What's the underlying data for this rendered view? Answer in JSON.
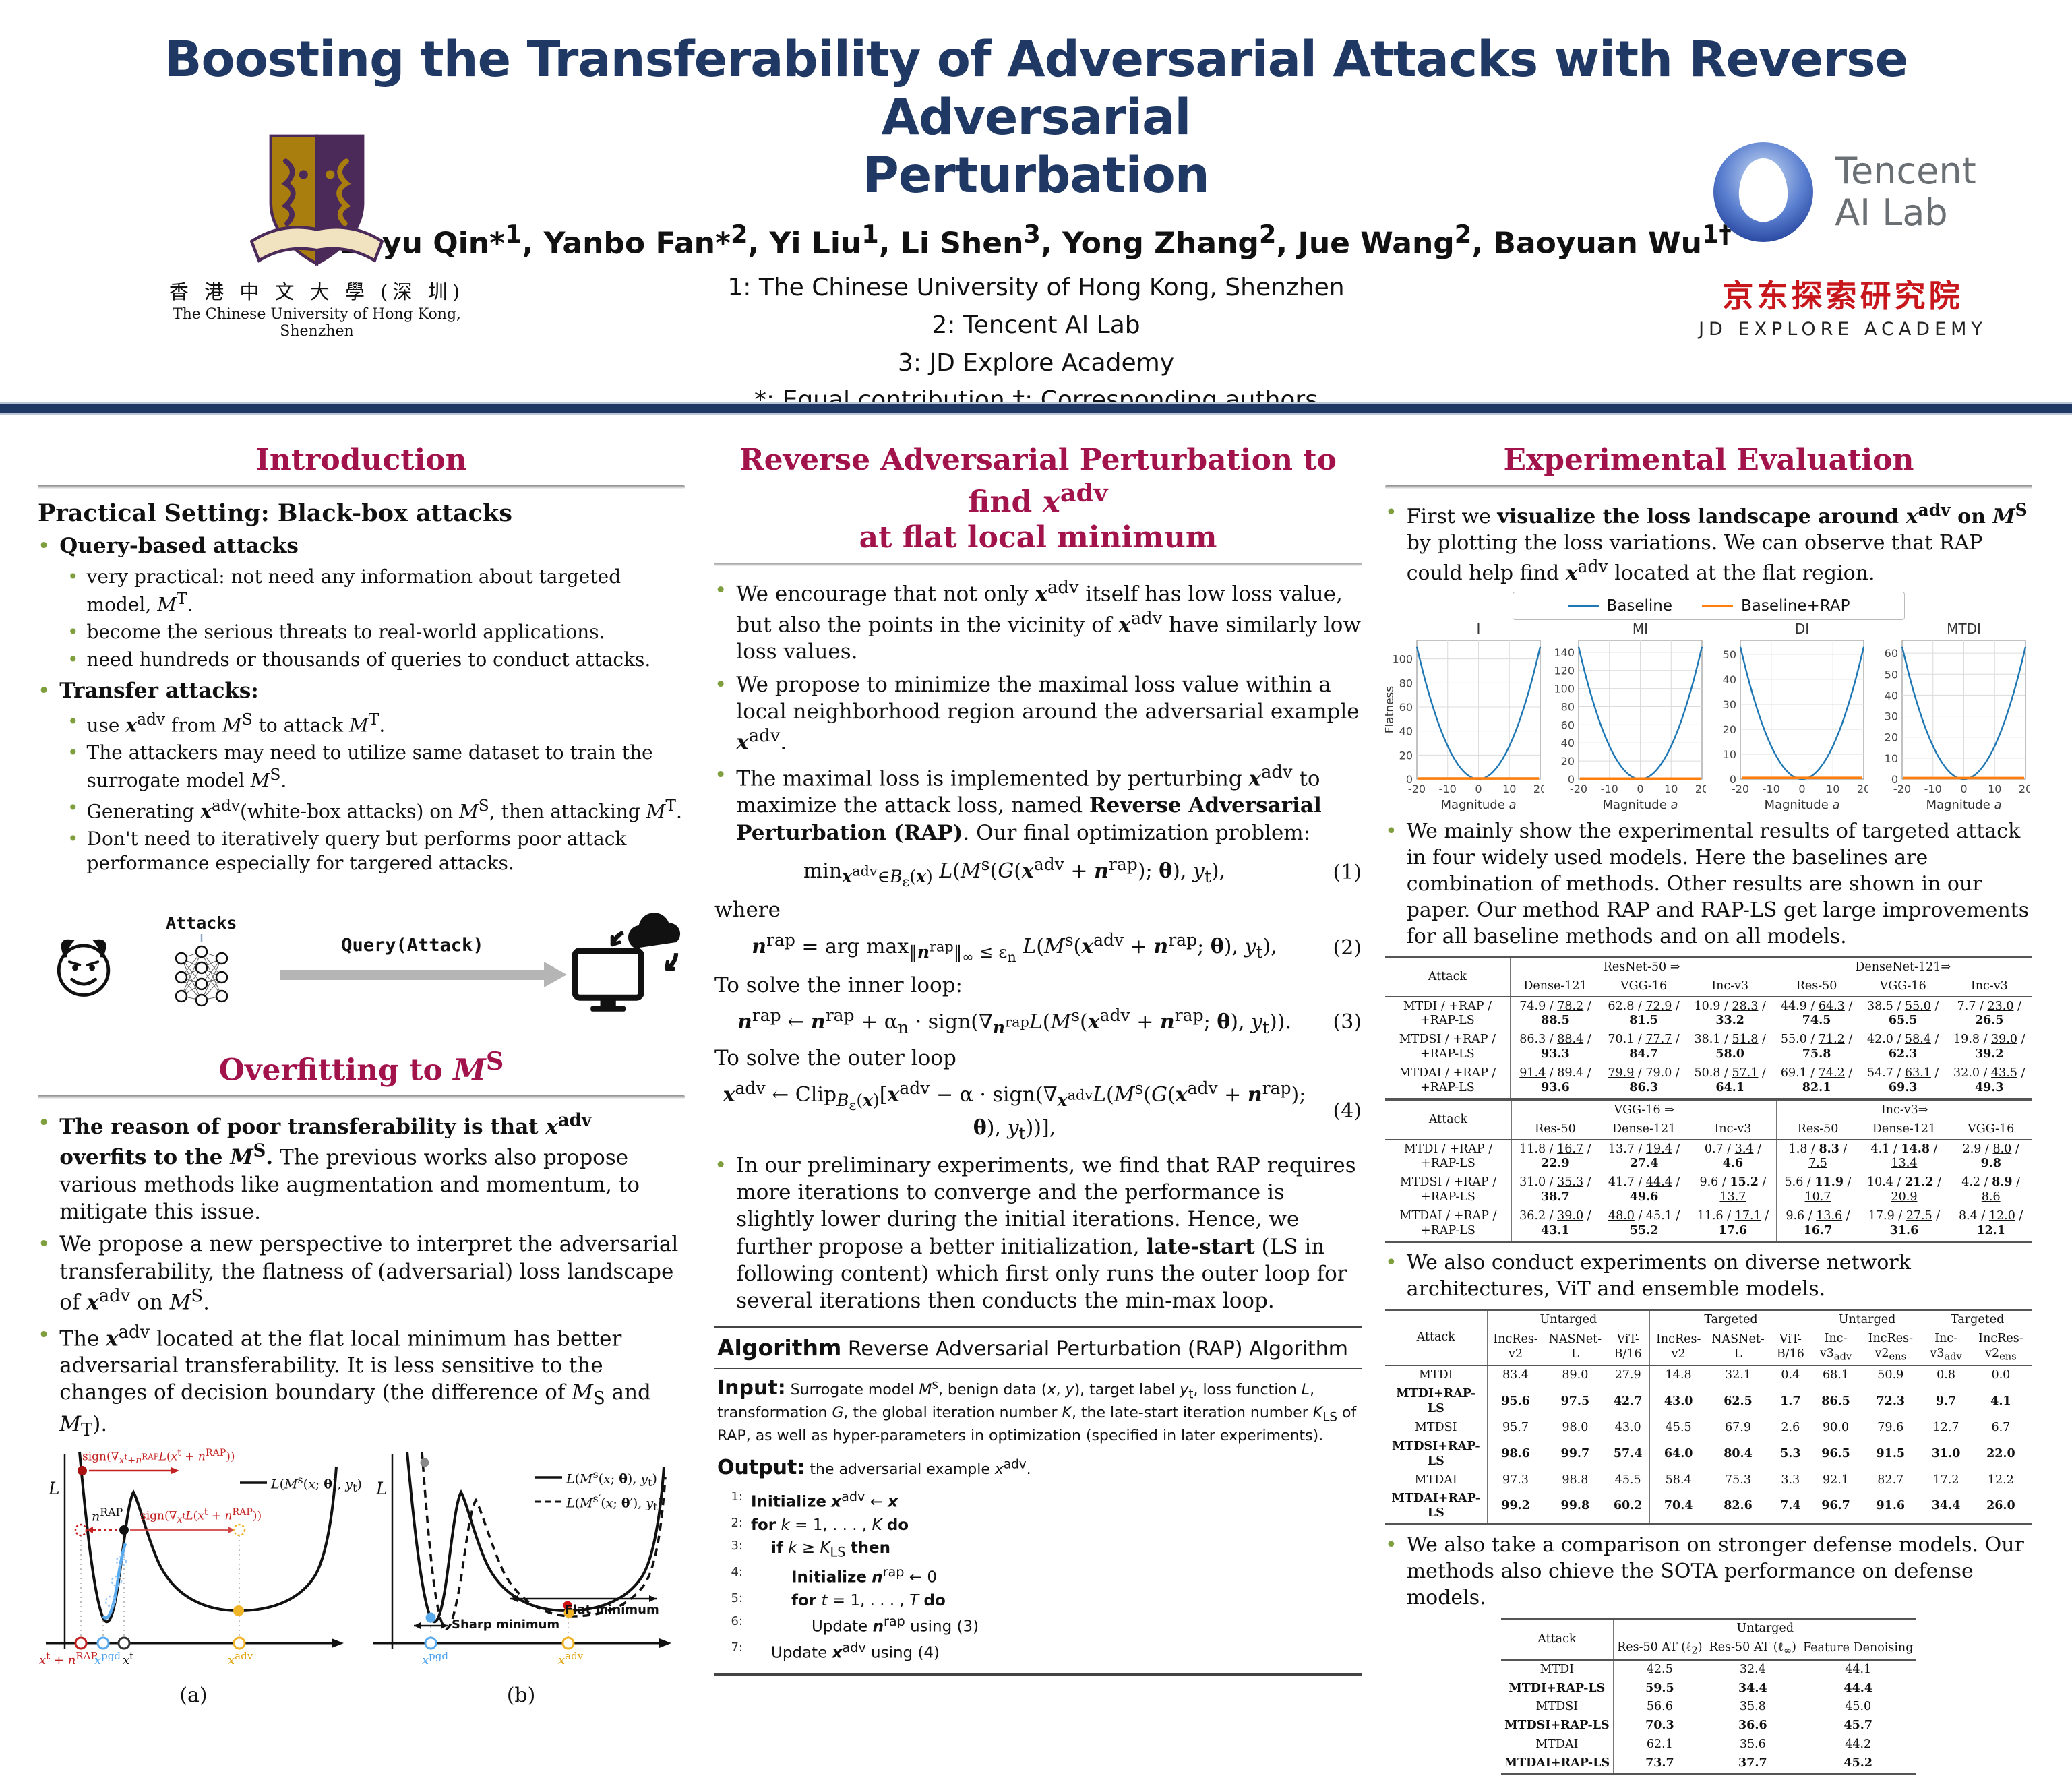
{
  "colors": {
    "accent": "#A3134B",
    "navy": "#1F3864",
    "bullet_green": "#7f9f3f",
    "baseline_blue": "#1f77b4",
    "rap_orange": "#ff7f0e",
    "jd_red": "#c8161d",
    "cuhk_purple": "#4b2a59",
    "cuhk_gold": "#a97d0e"
  },
  "header": {
    "title": "Boosting the Transferability of Adversarial Attacks with Reverse Adversarial\nPerturbation",
    "authors": "Zeyu Qin*^{1}, Yanbo Fan*^{2}, Yi Liu^{1}, Li Shen^{3}, Yong Zhang^{2}, Jue Wang^{2}, Baoyuan Wu^{1†}",
    "affils": [
      "1: The Chinese University of Hong Kong, Shenzhen",
      "2: Tencent AI Lab",
      "3: JD Explore Academy",
      "*: Equal contribution †: Corresponding authors"
    ],
    "cuhk": {
      "cn": "香 港 中 文 大 學 (深 圳)",
      "en": "The Chinese University of Hong Kong, Shenzhen"
    },
    "tencent": {
      "line1": "Tencent",
      "line2": "AI Lab"
    },
    "jd": {
      "cn": "京东探索研究院",
      "en": "JD EXPLORE ACADEMY"
    }
  },
  "sections": {
    "intro": "Introduction",
    "overfit": "Overfitting to //M//^{S}",
    "rap1": "Reverse Adversarial Perturbation to find //x//^{adv}",
    "rap2": "at flat local minimum",
    "eval": "Experimental Evaluation"
  },
  "intro": {
    "heading": "Practical Setting: Black-box attacks",
    "b1": "Query-based attacks",
    "b1_items": [
      "very practical: not need any information about targeted model, //M//^{T}.",
      "become the serious threats to real-world applications.",
      "need hundreds or thousands of queries to conduct attacks."
    ],
    "b2": "Transfer attacks:",
    "b2_items": [
      "use **//x//**^{adv} from //M//^{S} to attack //M//^{T}.",
      "The attackers may need to utilize same dataset to train the surrogate model //M//^{S}.",
      "Generating **//x//**^{adv}(white-box attacks) on //M//^{S}, then attacking //M//^{T}.",
      "Don't need to iteratively query but performs poor attack performance especially for targered attacks."
    ]
  },
  "diagram": {
    "attacks": "Attacks",
    "query": "Query(Attack)"
  },
  "overfit_items": [
    "**The reason of poor transferability is that //x//^{adv} overfits to the //M//^{S}.** The previous works also propose various methods like augmentation and momentum, to mitigate this issue.",
    "We propose a new perspective to interpret the adversarial transferability, the flatness of (adversarial) loss landscape of **//x//**^{adv} on //M//^{S}.",
    "The **//x//**^{adv} located at the flat local minimum has better adversarial transferability. It is less sensitive to the changes of decision boundary (the difference of //M//_{S} and //M//_{T})."
  ],
  "figa": {
    "axis": "//L//",
    "sign_top": "sign(∇_{//x//^{t}+//n//^{RAP}}//L//(//x//^{t} + //n//^{RAP}))",
    "nrap": "//n//^{RAP}",
    "sign_mid": "sign(∇_{//x//^{t}}//L//(//x//^{t} + //n//^{RAP}))",
    "legend": "//L//(//M//^{s}(//x//; **θ**), //y//_{t})",
    "x1": "//x//^{t} + //n//^{RAP}",
    "x2": "//x//^{pgd}",
    "x3": "//x//^{t}",
    "x4": "//x//^{adv}",
    "cap": "(a)"
  },
  "figb": {
    "axis": "//L//",
    "legend1": "//L//(//M//^{s}(//x//; **θ**), //y//_{t})",
    "legend2": "//L//(//M//^{s′}(//x//; **θ**′), //y//_{t})",
    "sharp": "Sharp minimum",
    "flat": "Flat minimum",
    "x1": "//x//^{pgd}",
    "x2": "//x//^{adv}",
    "cap": "(b)"
  },
  "rap": {
    "bullets": [
      "We encourage that not only **//x//**^{adv} itself has low loss value, but also the points in the vicinity of **//x//**^{adv} have similarly low loss values.",
      "We propose to minimize the maximal loss value within a local neighborhood region around the adversarial example **//x//**^{adv}.",
      "The maximal loss is implemented by perturbing **//x//**^{adv} to maximize the attack loss, named **Reverse Adversarial Perturbation (RAP)**. Our final optimization problem:"
    ],
    "eq1": "min_{**//x//**^{adv}∈//B//_{ε}(**//x//**)} //L//(//M//^{s}(//G//(**//x//**^{adv} + **//n//**^{rap}); **θ**), //y//_{t}),",
    "eq1n": "(1)",
    "where": "where",
    "eq2": "**//n//**^{rap} = arg max_{‖**//n//**^{rap}‖_{∞} ≤ ε_{n}} //L//(//M//^{s}(**//x//**^{adv} + **//n//**^{rap}; **θ**), //y//_{t}),",
    "eq2n": "(2)",
    "inner": "To solve the inner loop:",
    "eq3": "**//n//**^{rap} ← **//n//**^{rap} + α_{n} · sign(∇_{**//n//**^{rap}}//L//(//M//^{s}(**//x//**^{adv} + **//n//**^{rap}; **θ**), //y//_{t})).",
    "eq3n": "(3)",
    "outer": "To solve the outer loop",
    "eq4": "**//x//**^{adv} ← Clip_{//B//_{ε}(**//x//**)}[**//x//**^{adv} − α · sign(∇_{**//x//**^{adv}}//L//(//M//^{s}(//G//(**//x//**^{adv} + **//n//**^{rap}); **θ**), //y//_{t}))],",
    "eq4n": "(4)",
    "late": "In our preliminary experiments, we find that RAP requires more iterations to converge and the performance is slightly lower during the initial iterations. Hence, we further propose a better initialization, **late-start** (LS in following content) which first only runs the outer loop for several iterations then conducts the min-max loop."
  },
  "algorithm": {
    "title_b": "Algorithm",
    "title_rest": " Reverse Adversarial Perturbation (RAP) Algorithm",
    "input_label": "Input:",
    "input_text": " Surrogate model //M//^{s}, benign data (//x//, //y//), target label //y//_{t}, loss function //L//, transformation //G//, the global iteration number //K//, the late-start iteration number //K//_{LS} of RAP, as well as hyper-parameters in optimization (specified in later experiments).",
    "output_label": "Output:",
    "output_text": " the adversarial example //x//^{adv}.",
    "lines": [
      {
        "n": "1:",
        "ind": 0,
        "t": "**Initialize** **//x//**^{adv} ← **//x//**"
      },
      {
        "n": "2:",
        "ind": 0,
        "t": "**for** //k// = 1, . . . , //K// **do**"
      },
      {
        "n": "3:",
        "ind": 1,
        "t": "**if** //k// ≥ //K//_{LS} **then**"
      },
      {
        "n": "4:",
        "ind": 2,
        "t": "**Initialize** **//n//**^{rap} ← 0"
      },
      {
        "n": "5:",
        "ind": 2,
        "t": "**for** //t// = 1, . . . , //T// **do**"
      },
      {
        "n": "6:",
        "ind": 3,
        "t": "Update **//n//**^{rap} using (3)"
      },
      {
        "n": "7:",
        "ind": 1,
        "t": "Update **//x//**^{adv} using (4)"
      }
    ]
  },
  "eval": {
    "b1": "First we **visualize the loss landscape around //x//^{adv} on //M//^{S}** by plotting the loss variations. We can observe that RAP could help find **//x//**^{adv} located at the flat region.",
    "b2": "We mainly show the experimental results of targeted attack in four widely used models. Here the baselines are combination of methods. Other results are shown in our paper. Our method RAP and RAP-LS get large improvements for all baseline methods and on all models.",
    "b3": "We also conduct experiments on diverse network architectures, ViT and ensemble models.",
    "b4": "We also take a comparison on stronger defense models. Our methods also chieve the SOTA performance on defense models."
  },
  "chart_data": {
    "type": "line",
    "legend": [
      "Baseline",
      "Baseline+RAP"
    ],
    "colors": [
      "#1f77b4",
      "#ff7f0e"
    ],
    "xlabel": "Magnitude a",
    "ylabel": "Flatness",
    "x_range": [
      -20,
      20
    ],
    "xticks": [
      -20,
      -10,
      0,
      10,
      20
    ],
    "plots": [
      {
        "title": "I",
        "yticks": [
          0,
          20,
          40,
          60,
          80,
          100
        ],
        "baseline_peak": 110,
        "rap_value": 0.5
      },
      {
        "title": "MI",
        "yticks": [
          0,
          20,
          40,
          60,
          80,
          100,
          120,
          140
        ],
        "baseline_peak": 146,
        "rap_value": 0.5
      },
      {
        "title": "DI",
        "yticks": [
          0,
          10,
          20,
          30,
          40,
          50
        ],
        "baseline_peak": 53,
        "rap_value": 0.5
      },
      {
        "title": "MTDI",
        "yticks": [
          0,
          10,
          20,
          30,
          40,
          50,
          60
        ],
        "baseline_peak": 63,
        "rap_value": 0.5
      }
    ],
    "note": "Baseline loss rises steeply away from a=0; Baseline+RAP stays flat near 0"
  },
  "tables": {
    "t1a": {
      "head": [
        [
          {
            "t": "Attack",
            "rs": 2,
            "cls": "sepr"
          },
          {
            "t": "ResNet-50 ⇒",
            "cs": 3,
            "cls": "sepr"
          },
          {
            "t": "DenseNet-121⇒",
            "cs": 3
          }
        ],
        [
          {
            "t": "Dense-121"
          },
          {
            "t": "VGG-16"
          },
          {
            "t": "Inc-v3",
            "cls": "sepr"
          },
          {
            "t": "Res-50"
          },
          {
            "t": "VGG-16"
          },
          {
            "t": "Inc-v3"
          }
        ]
      ],
      "seps": [
        0,
        3
      ],
      "rows": [
        {
          "c": [
            "MTDI / +RAP / +RAP-LS",
            "74.9 / __78.2__ / **88.5**",
            "62.8 / __72.9__ / **81.5**",
            "10.9 / __28.3__ / **33.2**",
            "44.9 / __64.3__ / **74.5**",
            "38.5 / __55.0__ / **65.5**",
            "7.7 / __23.0__ / **26.5**"
          ]
        },
        {
          "c": [
            "MTDSI / +RAP / +RAP-LS",
            "86.3 / __88.4__ / **93.3**",
            "70.1 / __77.7__ / **84.7**",
            "38.1 / __51.8__ / **58.0**",
            "55.0 / __71.2__ / **75.8**",
            "42.0 / __58.4__ / **62.3**",
            "19.8 / __39.0__ / **39.2**"
          ]
        },
        {
          "c": [
            "MTDAI / +RAP / +RAP-LS",
            "__91.4__ / 89.4 / **93.6**",
            "__79.9__ / 79.0 / **86.3**",
            "50.8 / __57.1__ / **64.1**",
            "69.1 / __74.2__ / **82.1**",
            "54.7 / __63.1__ / **69.3**",
            "32.0 / __43.5__ / **49.3**"
          ]
        }
      ]
    },
    "t1b": {
      "head": [
        [
          {
            "t": "Attack",
            "rs": 2,
            "cls": "sepr"
          },
          {
            "t": "VGG-16 ⇒",
            "cs": 3,
            "cls": "sepr"
          },
          {
            "t": "Inc-v3⇒",
            "cs": 3
          }
        ],
        [
          {
            "t": "Res-50"
          },
          {
            "t": "Dense-121"
          },
          {
            "t": "Inc-v3",
            "cls": "sepr"
          },
          {
            "t": "Res-50"
          },
          {
            "t": "Dense-121"
          },
          {
            "t": "VGG-16"
          }
        ]
      ],
      "seps": [
        0,
        3
      ],
      "rows": [
        {
          "c": [
            "MTDI / +RAP / +RAP-LS",
            "11.8 / __16.7__ / **22.9**",
            "13.7 / __19.4__ / **27.4**",
            "0.7 / __3.4__ / **4.6**",
            "1.8 / **8.3** / __7.5__",
            "4.1 / **14.8** / __13.4__",
            "2.9 / __8.0__ / **9.8**"
          ]
        },
        {
          "c": [
            "MTDSI / +RAP / +RAP-LS",
            "31.0 / __35.3__ / **38.7**",
            "41.7 / __44.4__ / **49.6**",
            "9.6 / **15.2** / __13.7__",
            "5.6 / **11.9** / __10.7__",
            "10.4 / **21.2** / __20.9__",
            "4.2 / **8.9** / __8.6__"
          ]
        },
        {
          "c": [
            "MTDAI / +RAP / +RAP-LS",
            "36.2 / __39.0__ / **43.1**",
            "__48.0__ / 45.1 / **55.2**",
            "11.6 / __17.1__ / **17.6**",
            "9.6 / __13.6__ / **16.7**",
            "17.9 / __27.5__ / **31.6**",
            "8.4 / __12.0__ / **12.1**"
          ]
        }
      ]
    },
    "t2": {
      "head": [
        [
          {
            "t": "Attack",
            "rs": 2,
            "cls": "sepr"
          },
          {
            "t": "Untarged",
            "cs": 3,
            "cls": "sepr"
          },
          {
            "t": "Targeted",
            "cs": 3,
            "cls": "sepr"
          },
          {
            "t": "Untarged",
            "cs": 2,
            "cls": "sepr"
          },
          {
            "t": "Targeted",
            "cs": 2
          }
        ],
        [
          {
            "t": "IncRes-v2"
          },
          {
            "t": "NASNet-L"
          },
          {
            "t": "ViT-B/16",
            "cls": "sepr"
          },
          {
            "t": "IncRes-v2"
          },
          {
            "t": "NASNet-L"
          },
          {
            "t": "ViT-B/16",
            "cls": "sepr"
          },
          {
            "t": "Inc-v3_{adv}"
          },
          {
            "t": "IncRes-v2_{ens}",
            "cls": "sepr"
          },
          {
            "t": "Inc-v3_{adv}"
          },
          {
            "t": "IncRes-v2_{ens}"
          }
        ]
      ],
      "seps": [
        0,
        3,
        6,
        8
      ],
      "rows": [
        {
          "c": [
            "MTDI",
            "83.4",
            "89.0",
            "27.9",
            "14.8",
            "32.1",
            "0.4",
            "68.1",
            "50.9",
            "0.8",
            "0.0"
          ]
        },
        {
          "b": true,
          "c": [
            "MTDI+RAP-LS",
            "95.6",
            "97.5",
            "42.7",
            "43.0",
            "62.5",
            "1.7",
            "86.5",
            "72.3",
            "9.7",
            "4.1"
          ]
        },
        {
          "c": [
            "MTDSI",
            "95.7",
            "98.0",
            "43.0",
            "45.5",
            "67.9",
            "2.6",
            "90.0",
            "79.6",
            "12.7",
            "6.7"
          ]
        },
        {
          "b": true,
          "c": [
            "MTDSI+RAP-LS",
            "98.6",
            "99.7",
            "57.4",
            "64.0",
            "80.4",
            "5.3",
            "96.5",
            "91.5",
            "31.0",
            "22.0"
          ]
        },
        {
          "c": [
            "MTDAI",
            "97.3",
            "98.8",
            "45.5",
            "58.4",
            "75.3",
            "3.3",
            "92.1",
            "82.7",
            "17.2",
            "12.2"
          ]
        },
        {
          "b": true,
          "c": [
            "MTDAI+RAP-LS",
            "99.2",
            "99.8",
            "60.2",
            "70.4",
            "82.6",
            "7.4",
            "96.7",
            "91.6",
            "34.4",
            "26.0"
          ]
        }
      ]
    },
    "t3": {
      "head": [
        [
          {
            "t": "Attack",
            "rs": 2,
            "cls": "sepr"
          },
          {
            "t": "Untarged",
            "cs": 3
          }
        ],
        [
          {
            "t": "Res-50 AT (ℓ_{2})"
          },
          {
            "t": "Res-50 AT (ℓ_{∞})"
          },
          {
            "t": "Feature Denoising"
          }
        ]
      ],
      "seps": [
        0
      ],
      "rows": [
        {
          "c": [
            "MTDI",
            "42.5",
            "32.4",
            "44.1"
          ]
        },
        {
          "b": true,
          "c": [
            "MTDI+RAP-LS",
            "59.5",
            "34.4",
            "44.4"
          ]
        },
        {
          "c": [
            "MTDSI",
            "56.6",
            "35.8",
            "45.0"
          ]
        },
        {
          "b": true,
          "c": [
            "MTDSI+RAP-LS",
            "70.3",
            "36.6",
            "45.7"
          ]
        },
        {
          "c": [
            "MTDAI",
            "62.1",
            "35.6",
            "44.2"
          ]
        },
        {
          "b": true,
          "c": [
            "MTDAI+RAP-LS",
            "73.7",
            "37.7",
            "45.2"
          ]
        }
      ]
    }
  }
}
